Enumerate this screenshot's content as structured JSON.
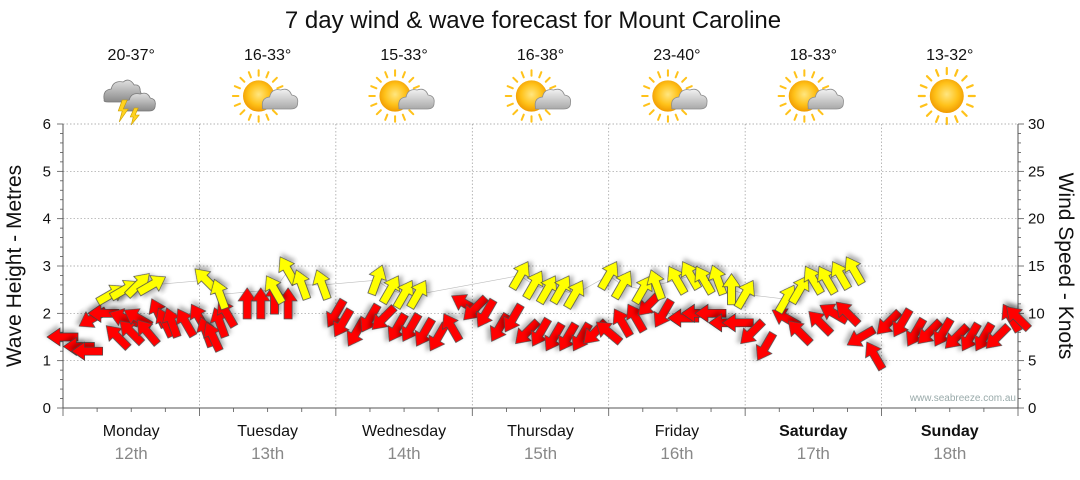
{
  "title": "7 day wind & wave forecast for Mount Caroline",
  "credit": "www.seabreeze.com.au",
  "colors": {
    "wind_arrow": "#ff0000",
    "wave_arrow": "#ffff00",
    "arrow_stroke": "#444444",
    "grid": "#999999",
    "axis": "#555555"
  },
  "days": [
    {
      "name": "Monday",
      "date": "12th",
      "temp": "20-37°",
      "icon": "storm-icon",
      "bold": false
    },
    {
      "name": "Tuesday",
      "date": "13th",
      "temp": "16-33°",
      "icon": "partly-cloudy-icon",
      "bold": false
    },
    {
      "name": "Wednesday",
      "date": "14th",
      "temp": "15-33°",
      "icon": "partly-cloudy-icon",
      "bold": false
    },
    {
      "name": "Thursday",
      "date": "15th",
      "temp": "16-38°",
      "icon": "partly-cloudy-icon",
      "bold": false
    },
    {
      "name": "Friday",
      "date": "16th",
      "temp": "23-40°",
      "icon": "partly-cloudy-icon",
      "bold": false
    },
    {
      "name": "Saturday",
      "date": "17th",
      "temp": "18-33°",
      "icon": "partly-cloudy-icon",
      "bold": true
    },
    {
      "name": "Sunday",
      "date": "18th",
      "temp": "13-32°",
      "icon": "sun-icon",
      "bold": true
    }
  ],
  "chart_data": {
    "type": "scatter",
    "title": "7 day wind & wave forecast for Mount Caroline",
    "ylabel_left": "Wave Height - Metres",
    "ylabel_right": "Wind Speed - Knots",
    "ylim_left": [
      0,
      6
    ],
    "ylim_right": [
      0,
      30
    ],
    "yticks_left": [
      "0",
      "1",
      "2",
      "3",
      "4",
      "5",
      "6"
    ],
    "yticks_right": [
      "0",
      "5",
      "10",
      "15",
      "20",
      "25",
      "30"
    ],
    "grid": true,
    "x_unit": "days from Monday 12th 00:00",
    "series": [
      {
        "kind": "wind",
        "points": [
          [
            0.0,
            1.5,
            180
          ],
          [
            0.12,
            1.3,
            180
          ],
          [
            0.18,
            1.2,
            180
          ],
          [
            0.22,
            1.9,
            150
          ],
          [
            0.3,
            2.0,
            180
          ],
          [
            0.4,
            1.5,
            225
          ],
          [
            0.45,
            1.9,
            200
          ],
          [
            0.5,
            1.6,
            225
          ],
          [
            0.55,
            1.9,
            210
          ],
          [
            0.62,
            1.6,
            230
          ],
          [
            0.7,
            2.0,
            245
          ],
          [
            0.75,
            1.8,
            245
          ],
          [
            0.8,
            1.8,
            250
          ],
          [
            0.9,
            1.8,
            240
          ],
          [
            1.0,
            1.9,
            240
          ],
          [
            1.05,
            1.6,
            250
          ],
          [
            1.1,
            1.5,
            245
          ],
          [
            1.15,
            1.8,
            250
          ],
          [
            1.2,
            2.0,
            240
          ],
          [
            1.35,
            2.2,
            270
          ],
          [
            1.45,
            2.2,
            270
          ],
          [
            1.55,
            2.3,
            270
          ],
          [
            1.65,
            2.2,
            270
          ],
          [
            2.0,
            2.0,
            120
          ],
          [
            2.05,
            1.8,
            120
          ],
          [
            2.15,
            1.6,
            120
          ],
          [
            2.25,
            1.9,
            120
          ],
          [
            2.35,
            1.9,
            135
          ],
          [
            2.45,
            1.7,
            120
          ],
          [
            2.55,
            1.7,
            120
          ],
          [
            2.65,
            1.6,
            120
          ],
          [
            2.75,
            1.5,
            120
          ],
          [
            2.85,
            1.7,
            240
          ],
          [
            2.95,
            2.2,
            210
          ],
          [
            3.02,
            2.1,
            135
          ],
          [
            3.1,
            2.0,
            120
          ],
          [
            3.2,
            1.7,
            120
          ],
          [
            3.3,
            1.9,
            120
          ],
          [
            3.4,
            1.6,
            135
          ],
          [
            3.5,
            1.6,
            120
          ],
          [
            3.6,
            1.5,
            120
          ],
          [
            3.7,
            1.5,
            120
          ],
          [
            3.8,
            1.5,
            120
          ],
          [
            3.9,
            1.6,
            135
          ],
          [
            4.0,
            1.6,
            220
          ],
          [
            4.1,
            1.8,
            240
          ],
          [
            4.2,
            1.9,
            240
          ],
          [
            4.3,
            2.2,
            135
          ],
          [
            4.4,
            2.0,
            120
          ],
          [
            4.55,
            1.9,
            180
          ],
          [
            4.65,
            2.0,
            180
          ],
          [
            4.75,
            2.0,
            180
          ],
          [
            4.85,
            1.8,
            180
          ],
          [
            4.95,
            1.8,
            180
          ],
          [
            5.05,
            1.6,
            135
          ],
          [
            5.15,
            1.3,
            120
          ],
          [
            5.3,
            1.9,
            210
          ],
          [
            5.4,
            1.6,
            225
          ],
          [
            5.55,
            1.8,
            225
          ],
          [
            5.65,
            2.0,
            210
          ],
          [
            5.75,
            2.0,
            225
          ],
          [
            5.85,
            1.5,
            150
          ],
          [
            5.95,
            1.1,
            240
          ],
          [
            6.05,
            1.8,
            135
          ],
          [
            6.15,
            1.8,
            120
          ],
          [
            6.25,
            1.6,
            120
          ],
          [
            6.35,
            1.6,
            135
          ],
          [
            6.45,
            1.6,
            120
          ],
          [
            6.55,
            1.5,
            135
          ],
          [
            6.65,
            1.5,
            120
          ],
          [
            6.75,
            1.5,
            120
          ],
          [
            6.85,
            1.5,
            135
          ],
          [
            6.95,
            1.9,
            240
          ],
          [
            7.0,
            1.9,
            225
          ]
        ]
      },
      {
        "kind": "wave",
        "points": [
          [
            0.35,
            2.4,
            330
          ],
          [
            0.45,
            2.5,
            330
          ],
          [
            0.55,
            2.6,
            315
          ],
          [
            0.65,
            2.6,
            330
          ],
          [
            1.05,
            2.7,
            225
          ],
          [
            1.15,
            2.4,
            250
          ],
          [
            1.55,
            2.5,
            240
          ],
          [
            1.65,
            2.9,
            240
          ],
          [
            1.75,
            2.6,
            250
          ],
          [
            1.9,
            2.6,
            250
          ],
          [
            2.3,
            2.7,
            290
          ],
          [
            2.4,
            2.5,
            300
          ],
          [
            2.5,
            2.4,
            300
          ],
          [
            2.6,
            2.4,
            300
          ],
          [
            3.35,
            2.8,
            300
          ],
          [
            3.45,
            2.6,
            300
          ],
          [
            3.55,
            2.5,
            300
          ],
          [
            3.65,
            2.5,
            300
          ],
          [
            3.75,
            2.4,
            300
          ],
          [
            4.0,
            2.8,
            300
          ],
          [
            4.1,
            2.6,
            300
          ],
          [
            4.25,
            2.5,
            300
          ],
          [
            4.35,
            2.6,
            250
          ],
          [
            4.5,
            2.7,
            240
          ],
          [
            4.6,
            2.8,
            240
          ],
          [
            4.7,
            2.7,
            240
          ],
          [
            4.8,
            2.7,
            250
          ],
          [
            4.9,
            2.5,
            270
          ],
          [
            5.0,
            2.4,
            300
          ],
          [
            5.3,
            2.3,
            300
          ],
          [
            5.4,
            2.5,
            300
          ],
          [
            5.5,
            2.7,
            240
          ],
          [
            5.6,
            2.7,
            240
          ],
          [
            5.7,
            2.8,
            240
          ],
          [
            5.8,
            2.9,
            240
          ]
        ]
      }
    ]
  }
}
